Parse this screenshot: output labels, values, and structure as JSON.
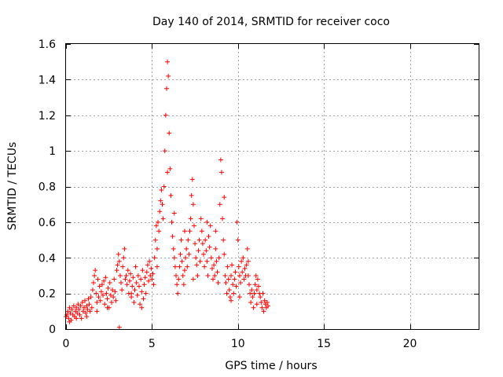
{
  "chart_data": {
    "type": "scatter",
    "title": "Day 140 of 2014, SRMTID for receiver coco",
    "xlabel": "GPS time / hours",
    "ylabel": "SRMTID / TECUs",
    "xlim": [
      0,
      24
    ],
    "ylim": [
      0,
      1.6
    ],
    "xticks": [
      0,
      5,
      10,
      15,
      20
    ],
    "yticks": [
      0,
      0.2,
      0.4,
      0.6,
      0.8,
      1,
      1.2,
      1.4,
      1.6
    ],
    "xtick_labels": [
      "0",
      "5",
      "10",
      "15",
      "20"
    ],
    "ytick_labels": [
      "0",
      "0.2",
      "0.4",
      "0.6",
      "0.8",
      "1",
      "1.2",
      "1.4",
      "1.6"
    ],
    "grid": true,
    "marker": "+",
    "color": "#ff0000",
    "series": [
      {
        "name": "SRMTID",
        "points": [
          [
            0.0,
            0.07
          ],
          [
            0.05,
            0.08
          ],
          [
            0.1,
            0.1
          ],
          [
            0.15,
            0.06
          ],
          [
            0.2,
            0.12
          ],
          [
            0.25,
            0.09
          ],
          [
            0.3,
            0.05
          ],
          [
            0.35,
            0.11
          ],
          [
            0.4,
            0.08
          ],
          [
            0.45,
            0.13
          ],
          [
            0.5,
            0.07
          ],
          [
            0.55,
            0.1
          ],
          [
            0.6,
            0.12
          ],
          [
            0.65,
            0.09
          ],
          [
            0.7,
            0.14
          ],
          [
            0.75,
            0.11
          ],
          [
            0.8,
            0.08
          ],
          [
            0.85,
            0.13
          ],
          [
            0.9,
            0.06
          ],
          [
            0.95,
            0.15
          ],
          [
            1.0,
            0.1
          ],
          [
            1.05,
            0.12
          ],
          [
            1.1,
            0.16
          ],
          [
            1.15,
            0.09
          ],
          [
            1.2,
            0.13
          ],
          [
            1.25,
            0.11
          ],
          [
            1.3,
            0.17
          ],
          [
            1.35,
            0.14
          ],
          [
            1.4,
            0.1
          ],
          [
            1.45,
            0.18
          ],
          [
            1.5,
            0.12
          ],
          [
            1.55,
            0.22
          ],
          [
            1.6,
            0.26
          ],
          [
            1.65,
            0.3
          ],
          [
            1.7,
            0.33
          ],
          [
            1.75,
            0.2
          ],
          [
            1.8,
            0.15
          ],
          [
            1.85,
            0.28
          ],
          [
            1.9,
            0.18
          ],
          [
            1.95,
            0.24
          ],
          [
            2.0,
            0.16
          ],
          [
            2.05,
            0.21
          ],
          [
            2.1,
            0.25
          ],
          [
            2.15,
            0.19
          ],
          [
            2.2,
            0.27
          ],
          [
            2.25,
            0.14
          ],
          [
            2.3,
            0.29
          ],
          [
            2.35,
            0.2
          ],
          [
            2.4,
            0.17
          ],
          [
            2.45,
            0.23
          ],
          [
            2.5,
            0.12
          ],
          [
            2.55,
            0.26
          ],
          [
            2.6,
            0.19
          ],
          [
            2.65,
            0.15
          ],
          [
            2.7,
            0.22
          ],
          [
            2.75,
            0.18
          ],
          [
            2.8,
            0.28
          ],
          [
            2.85,
            0.21
          ],
          [
            2.9,
            0.16
          ],
          [
            2.95,
            0.33
          ],
          [
            3.0,
            0.36
          ],
          [
            3.05,
            0.42
          ],
          [
            3.1,
            0.38
          ],
          [
            3.15,
            0.3
          ],
          [
            3.2,
            0.26
          ],
          [
            3.25,
            0.22
          ],
          [
            3.3,
            0.35
          ],
          [
            3.35,
            0.4
          ],
          [
            3.4,
            0.45
          ],
          [
            3.45,
            0.28
          ],
          [
            3.5,
            0.3
          ],
          [
            3.55,
            0.25
          ],
          [
            3.6,
            0.33
          ],
          [
            3.65,
            0.2
          ],
          [
            3.7,
            0.27
          ],
          [
            3.75,
            0.31
          ],
          [
            3.8,
            0.18
          ],
          [
            3.85,
            0.24
          ],
          [
            3.9,
            0.29
          ],
          [
            3.95,
            0.15
          ],
          [
            4.0,
            0.22
          ],
          [
            4.05,
            0.35
          ],
          [
            4.1,
            0.26
          ],
          [
            4.15,
            0.19
          ],
          [
            4.2,
            0.3
          ],
          [
            4.25,
            0.24
          ],
          [
            4.3,
            0.14
          ],
          [
            4.35,
            0.28
          ],
          [
            4.4,
            0.21
          ],
          [
            4.45,
            0.33
          ],
          [
            4.5,
            0.17
          ],
          [
            4.55,
            0.25
          ],
          [
            4.6,
            0.29
          ],
          [
            4.65,
            0.2
          ],
          [
            4.7,
            0.32
          ],
          [
            4.75,
            0.36
          ],
          [
            4.8,
            0.27
          ],
          [
            4.85,
            0.38
          ],
          [
            4.9,
            0.3
          ],
          [
            4.95,
            0.34
          ],
          [
            5.0,
            0.28
          ],
          [
            5.05,
            0.31
          ],
          [
            5.1,
            0.25
          ],
          [
            5.15,
            0.4
          ],
          [
            5.2,
            0.5
          ],
          [
            5.25,
            0.58
          ],
          [
            5.3,
            0.45
          ],
          [
            5.35,
            0.6
          ],
          [
            5.4,
            0.55
          ],
          [
            5.45,
            0.66
          ],
          [
            5.5,
            0.72
          ],
          [
            5.55,
            0.78
          ],
          [
            5.6,
            0.7
          ],
          [
            5.65,
            0.62
          ],
          [
            5.7,
            0.8
          ],
          [
            5.75,
            1.0
          ],
          [
            5.8,
            1.2
          ],
          [
            5.85,
            1.35
          ],
          [
            5.9,
            1.5
          ],
          [
            5.95,
            1.42
          ],
          [
            6.0,
            1.1
          ],
          [
            6.05,
            0.9
          ],
          [
            6.1,
            0.75
          ],
          [
            6.15,
            0.6
          ],
          [
            6.2,
            0.52
          ],
          [
            6.25,
            0.45
          ],
          [
            6.3,
            0.4
          ],
          [
            6.35,
            0.35
          ],
          [
            6.4,
            0.3
          ],
          [
            6.45,
            0.25
          ],
          [
            6.5,
            0.2
          ],
          [
            6.55,
            0.28
          ],
          [
            6.6,
            0.35
          ],
          [
            6.65,
            0.42
          ],
          [
            6.7,
            0.5
          ],
          [
            6.75,
            0.38
          ],
          [
            6.8,
            0.3
          ],
          [
            6.85,
            0.25
          ],
          [
            6.9,
            0.33
          ],
          [
            6.95,
            0.4
          ],
          [
            7.0,
            0.45
          ],
          [
            7.05,
            0.35
          ],
          [
            7.1,
            0.5
          ],
          [
            7.15,
            0.42
          ],
          [
            7.2,
            0.55
          ],
          [
            7.25,
            0.62
          ],
          [
            7.3,
            0.75
          ],
          [
            7.35,
            0.84
          ],
          [
            7.4,
            0.7
          ],
          [
            7.45,
            0.58
          ],
          [
            7.5,
            0.48
          ],
          [
            7.55,
            0.4
          ],
          [
            7.6,
            0.36
          ],
          [
            7.65,
            0.3
          ],
          [
            7.7,
            0.44
          ],
          [
            7.75,
            0.5
          ],
          [
            7.8,
            0.38
          ],
          [
            7.85,
            0.62
          ],
          [
            7.9,
            0.55
          ],
          [
            7.95,
            0.48
          ],
          [
            8.0,
            0.42
          ],
          [
            8.05,
            0.35
          ],
          [
            8.1,
            0.5
          ],
          [
            8.15,
            0.44
          ],
          [
            8.2,
            0.38
          ],
          [
            8.25,
            0.3
          ],
          [
            8.3,
            0.52
          ],
          [
            8.35,
            0.46
          ],
          [
            8.4,
            0.58
          ],
          [
            8.45,
            0.4
          ],
          [
            8.5,
            0.34
          ],
          [
            8.55,
            0.28
          ],
          [
            8.6,
            0.36
          ],
          [
            8.65,
            0.3
          ],
          [
            8.7,
            0.45
          ],
          [
            8.75,
            0.38
          ],
          [
            8.8,
            0.32
          ],
          [
            8.85,
            0.26
          ],
          [
            8.9,
            0.4
          ],
          [
            8.95,
            0.7
          ],
          [
            9.0,
            0.95
          ],
          [
            9.05,
            0.88
          ],
          [
            9.1,
            0.62
          ],
          [
            9.15,
            0.5
          ],
          [
            9.2,
            0.42
          ],
          [
            9.25,
            0.3
          ],
          [
            9.3,
            0.26
          ],
          [
            9.35,
            0.2
          ],
          [
            9.4,
            0.35
          ],
          [
            9.45,
            0.28
          ],
          [
            9.5,
            0.22
          ],
          [
            9.55,
            0.18
          ],
          [
            9.6,
            0.3
          ],
          [
            9.65,
            0.36
          ],
          [
            9.7,
            0.25
          ],
          [
            9.75,
            0.2
          ],
          [
            9.8,
            0.28
          ],
          [
            9.85,
            0.32
          ],
          [
            9.9,
            0.24
          ],
          [
            9.95,
            0.6
          ],
          [
            10.0,
            0.5
          ],
          [
            10.05,
            0.35
          ],
          [
            10.1,
            0.3
          ],
          [
            10.15,
            0.26
          ],
          [
            10.2,
            0.38
          ],
          [
            10.25,
            0.32
          ],
          [
            10.3,
            0.4
          ],
          [
            10.35,
            0.28
          ],
          [
            10.4,
            0.34
          ],
          [
            10.45,
            0.3
          ],
          [
            10.5,
            0.36
          ],
          [
            10.55,
            0.45
          ],
          [
            10.6,
            0.38
          ],
          [
            10.65,
            0.25
          ],
          [
            10.7,
            0.2
          ],
          [
            10.75,
            0.15
          ],
          [
            10.8,
            0.22
          ],
          [
            10.85,
            0.18
          ],
          [
            10.9,
            0.12
          ],
          [
            10.95,
            0.2
          ],
          [
            11.0,
            0.25
          ],
          [
            11.05,
            0.3
          ],
          [
            11.1,
            0.22
          ],
          [
            11.15,
            0.28
          ],
          [
            11.2,
            0.24
          ],
          [
            11.25,
            0.2
          ],
          [
            11.3,
            0.18
          ],
          [
            11.35,
            0.15
          ],
          [
            11.4,
            0.12
          ],
          [
            11.45,
            0.2
          ],
          [
            11.5,
            0.1
          ],
          [
            11.55,
            0.16
          ],
          [
            11.6,
            0.14
          ],
          [
            11.65,
            0.12
          ],
          [
            11.7,
            0.15
          ],
          [
            11.75,
            0.13
          ],
          [
            0.2,
            0.04
          ],
          [
            0.6,
            0.06
          ],
          [
            1.2,
            0.07
          ],
          [
            1.8,
            0.1
          ],
          [
            2.4,
            0.12
          ],
          [
            3.1,
            0.01
          ],
          [
            3.8,
            0.2
          ],
          [
            4.4,
            0.12
          ],
          [
            5.3,
            0.35
          ],
          [
            5.9,
            0.88
          ],
          [
            6.3,
            0.65
          ],
          [
            6.9,
            0.55
          ],
          [
            7.4,
            0.28
          ],
          [
            8.2,
            0.6
          ],
          [
            8.7,
            0.55
          ],
          [
            9.2,
            0.74
          ],
          [
            9.6,
            0.16
          ],
          [
            10.1,
            0.18
          ],
          [
            10.6,
            0.3
          ],
          [
            11.1,
            0.14
          ]
        ]
      }
    ]
  }
}
